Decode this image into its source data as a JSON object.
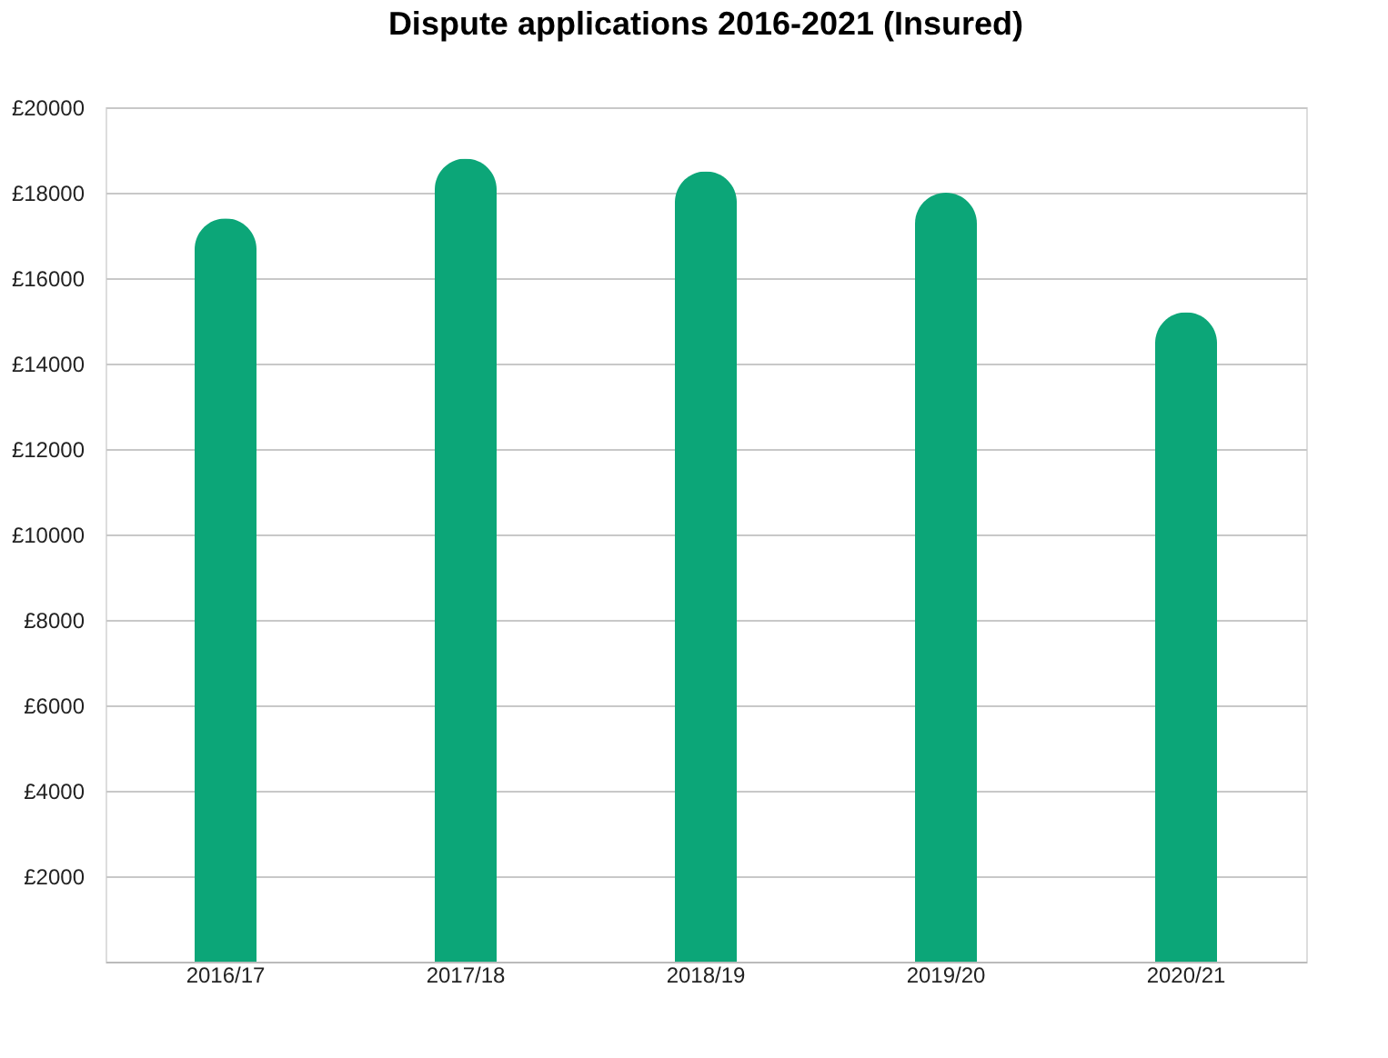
{
  "chart_data": {
    "type": "bar",
    "title": "Dispute applications 2016-2021 (Insured)",
    "categories": [
      "2016/17",
      "2017/18",
      "2018/19",
      "2019/20",
      "2020/21"
    ],
    "values": [
      17400,
      18800,
      18500,
      18000,
      15200
    ],
    "color": "#0ca678",
    "ylim": [
      0,
      20000
    ],
    "yticks": [
      {
        "value": 2000,
        "label": "£2000"
      },
      {
        "value": 4000,
        "label": "£4000"
      },
      {
        "value": 6000,
        "label": "£6000"
      },
      {
        "value": 8000,
        "label": "£8000"
      },
      {
        "value": 10000,
        "label": "£10000"
      },
      {
        "value": 12000,
        "label": "£12000"
      },
      {
        "value": 14000,
        "label": "£14000"
      },
      {
        "value": 16000,
        "label": "£16000"
      },
      {
        "value": 18000,
        "label": "£18000"
      },
      {
        "value": 20000,
        "label": "£20000"
      }
    ],
    "grid": "y"
  }
}
